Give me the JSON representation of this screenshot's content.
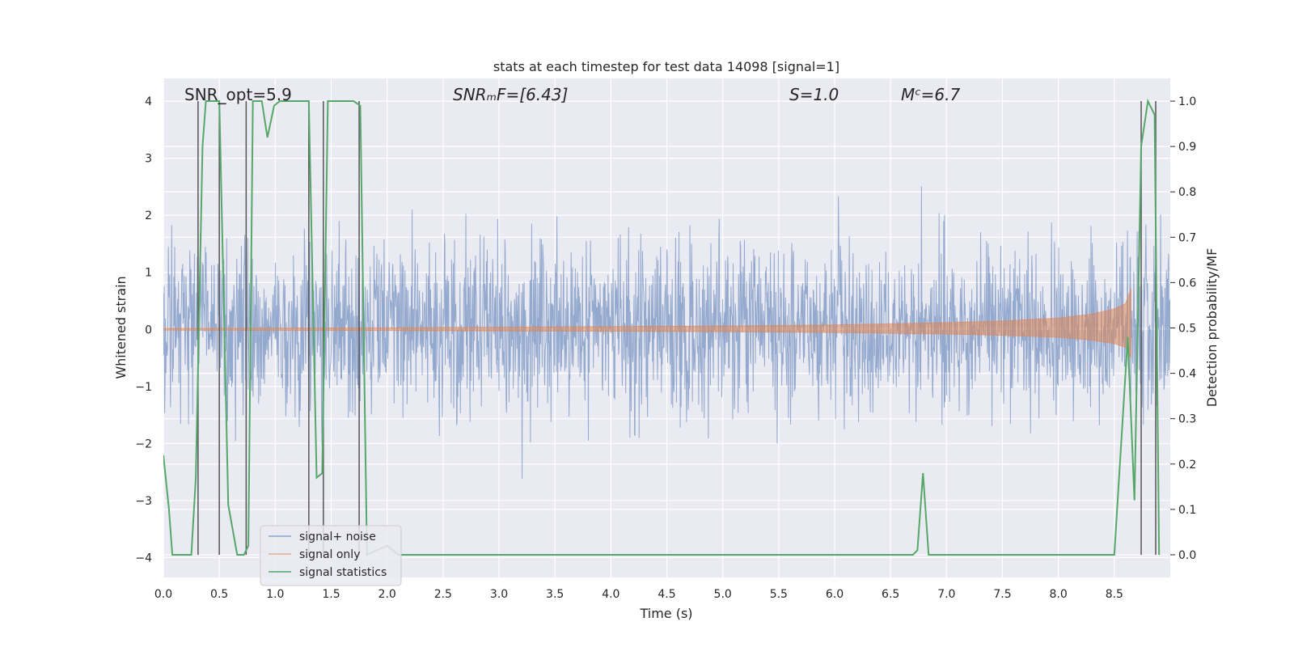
{
  "chart_data": {
    "type": "line",
    "title": "stats at each timestep for test data 14098 [signal=1]",
    "xlabel": "Time (s)",
    "ylabel_left": "Whitened strain",
    "ylabel_right": "Detection probability/MF",
    "xlim": [
      0.0,
      9.0
    ],
    "ylim_left": [
      -4.35,
      4.4
    ],
    "ylim_right": [
      -0.05,
      1.05
    ],
    "x_ticks": [
      0.0,
      0.5,
      1.0,
      1.5,
      2.0,
      2.5,
      3.0,
      3.5,
      4.0,
      4.5,
      5.0,
      5.5,
      6.0,
      6.5,
      7.0,
      7.5,
      8.0,
      8.5
    ],
    "x_tick_labels": [
      "0.0",
      "0.5",
      "1.0",
      "1.5",
      "2.0",
      "2.5",
      "3.0",
      "3.5",
      "4.0",
      "4.5",
      "5.0",
      "5.5",
      "6.0",
      "6.5",
      "7.0",
      "7.5",
      "8.0",
      "8.5"
    ],
    "y_left_ticks": [
      -4,
      -3,
      -2,
      -1,
      0,
      1,
      2,
      3,
      4
    ],
    "y_left_tick_labels": [
      "−4",
      "−3",
      "−2",
      "−1",
      "0",
      "1",
      "2",
      "3",
      "4"
    ],
    "y_right_ticks": [
      0.0,
      0.1,
      0.2,
      0.3,
      0.4,
      0.5,
      0.6,
      0.7,
      0.8,
      0.9,
      1.0
    ],
    "y_right_tick_labels": [
      "0.0",
      "0.1",
      "0.2",
      "0.3",
      "0.4",
      "0.5",
      "0.6",
      "0.7",
      "0.8",
      "0.9",
      "1.0"
    ],
    "annotations": {
      "snr_opt": "SNR_opt=5.9",
      "snr_mf": "SNRₘF=[6.43]",
      "s_value": "S=1.0",
      "chirp_mass": "Mᶜ=6.7"
    },
    "legend": {
      "position": "lower-left",
      "entries": [
        "signal+ noise",
        "signal only",
        "signal statistics"
      ]
    },
    "series": [
      {
        "name": "signal+ noise",
        "axis": "left",
        "color": "#4c72b0",
        "style": "dense noise trace, typical amplitude about ±1.5, peaks near ±3.5",
        "noise_seed": 14098,
        "sigma": 0.75
      },
      {
        "name": "signal only",
        "axis": "left",
        "color": "#dd8452",
        "style": "chirp with growing amplitude ending near t=8.65",
        "envelope_points": [
          [
            0.0,
            0.02
          ],
          [
            2.0,
            0.03
          ],
          [
            4.0,
            0.05
          ],
          [
            5.0,
            0.06
          ],
          [
            6.0,
            0.08
          ],
          [
            7.0,
            0.12
          ],
          [
            7.5,
            0.15
          ],
          [
            8.0,
            0.2
          ],
          [
            8.3,
            0.27
          ],
          [
            8.5,
            0.36
          ],
          [
            8.6,
            0.45
          ],
          [
            8.65,
            0.72
          ]
        ],
        "merger_time": 8.65
      },
      {
        "name": "signal statistics",
        "axis": "right",
        "color": "#55a868",
        "points": [
          [
            0.0,
            0.22
          ],
          [
            0.05,
            0.1
          ],
          [
            0.08,
            0.0
          ],
          [
            0.25,
            0.0
          ],
          [
            0.29,
            0.17
          ],
          [
            0.35,
            0.9
          ],
          [
            0.38,
            1.0
          ],
          [
            0.5,
            1.0
          ],
          [
            0.58,
            0.11
          ],
          [
            0.66,
            0.0
          ],
          [
            0.72,
            0.0
          ],
          [
            0.76,
            0.02
          ],
          [
            0.8,
            1.0
          ],
          [
            0.88,
            1.0
          ],
          [
            0.93,
            0.92
          ],
          [
            0.99,
            0.99
          ],
          [
            1.04,
            1.0
          ],
          [
            1.3,
            1.0
          ],
          [
            1.37,
            0.17
          ],
          [
            1.42,
            0.18
          ],
          [
            1.47,
            1.0
          ],
          [
            1.7,
            1.0
          ],
          [
            1.76,
            0.99
          ],
          [
            1.82,
            0.0
          ],
          [
            2.0,
            0.02
          ],
          [
            2.1,
            0.0
          ],
          [
            6.7,
            0.0
          ],
          [
            6.74,
            0.01
          ],
          [
            6.79,
            0.18
          ],
          [
            6.84,
            0.0
          ],
          [
            8.5,
            0.0
          ],
          [
            8.62,
            0.48
          ],
          [
            8.68,
            0.12
          ],
          [
            8.74,
            0.9
          ],
          [
            8.8,
            1.0
          ],
          [
            8.86,
            0.97
          ],
          [
            8.9,
            0.0
          ]
        ]
      }
    ],
    "vertical_markers": [
      0.31,
      0.5,
      0.74,
      1.3,
      1.43,
      1.75,
      8.74,
      8.87
    ]
  }
}
